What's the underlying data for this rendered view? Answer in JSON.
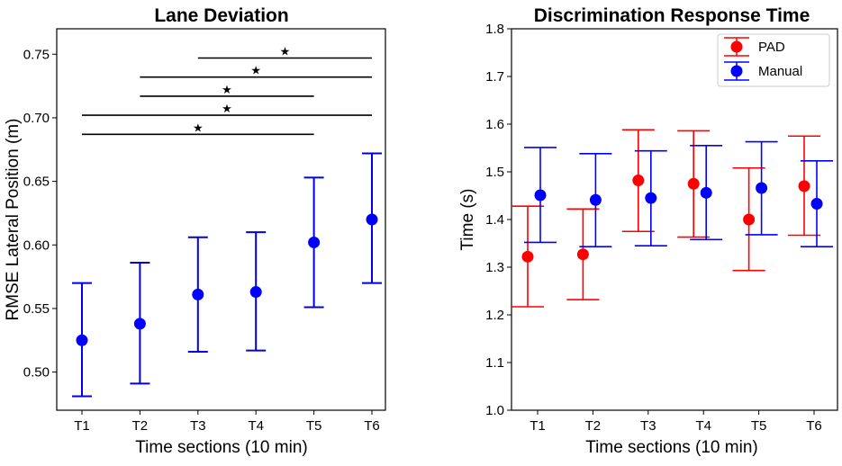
{
  "colors": {
    "pad": "#ff0000",
    "manual": "#0000ff",
    "lane": "#0000e0",
    "axis": "#000000",
    "sig": "#000000"
  },
  "chart_data": [
    {
      "type": "scatter",
      "title": "Lane Deviation",
      "xlabel": "Time sections (10 min)",
      "ylabel": "RMSE Lateral Position (m)",
      "categories": [
        "T1",
        "T2",
        "T3",
        "T4",
        "T5",
        "T6"
      ],
      "ylim": [
        0.47,
        0.77
      ],
      "yticks": [
        0.5,
        0.55,
        0.6,
        0.65,
        0.7,
        0.75
      ],
      "ytick_labels": [
        "0.50",
        "0.55",
        "0.60",
        "0.65",
        "0.70",
        "0.75"
      ],
      "series": [
        {
          "name": "RMSE",
          "values": [
            0.525,
            0.538,
            0.561,
            0.563,
            0.602,
            0.62
          ],
          "err_low": [
            0.481,
            0.491,
            0.516,
            0.517,
            0.551,
            0.57
          ],
          "err_high": [
            0.57,
            0.586,
            0.606,
            0.61,
            0.653,
            0.672
          ]
        }
      ],
      "significance": [
        {
          "from": 1,
          "to": 5,
          "y": 0.687,
          "label": "★"
        },
        {
          "from": 1,
          "to": 6,
          "y": 0.702,
          "label": "★"
        },
        {
          "from": 2,
          "to": 5,
          "y": 0.717,
          "label": "★"
        },
        {
          "from": 2,
          "to": 6,
          "y": 0.732,
          "label": "★"
        },
        {
          "from": 3,
          "to": 6,
          "y": 0.747,
          "label": "★"
        }
      ]
    },
    {
      "type": "scatter",
      "title": "Discrimination Response Time",
      "xlabel": "Time sections (10 min)",
      "ylabel": "Time (s)",
      "categories": [
        "T1",
        "T2",
        "T3",
        "T4",
        "T5",
        "T6"
      ],
      "ylim": [
        1.0,
        1.8
      ],
      "yticks": [
        1.0,
        1.1,
        1.2,
        1.3,
        1.4,
        1.5,
        1.6,
        1.7,
        1.8
      ],
      "ytick_labels": [
        "1.0",
        "1.1",
        "1.2",
        "1.3",
        "1.4",
        "1.5",
        "1.6",
        "1.7",
        "1.8"
      ],
      "legend": {
        "position": "top-right",
        "entries": [
          "PAD",
          "Manual"
        ]
      },
      "series": [
        {
          "name": "PAD",
          "values": [
            1.322,
            1.327,
            1.482,
            1.475,
            1.4,
            1.47
          ],
          "err_low": [
            1.217,
            1.232,
            1.375,
            1.363,
            1.293,
            1.367
          ],
          "err_high": [
            1.428,
            1.422,
            1.588,
            1.586,
            1.508,
            1.575
          ]
        },
        {
          "name": "Manual",
          "values": [
            1.451,
            1.441,
            1.445,
            1.456,
            1.466,
            1.433
          ],
          "err_low": [
            1.352,
            1.343,
            1.345,
            1.358,
            1.368,
            1.343
          ],
          "err_high": [
            1.551,
            1.538,
            1.544,
            1.555,
            1.563,
            1.523
          ]
        }
      ]
    }
  ]
}
